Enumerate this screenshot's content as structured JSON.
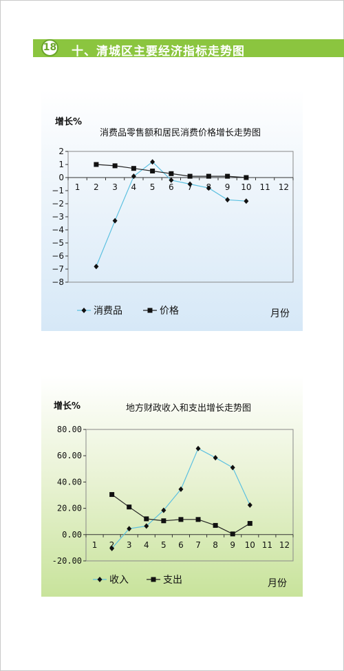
{
  "header": {
    "number": "18",
    "title": "十、清城区主要经济指标走势图"
  },
  "chart_data": [
    {
      "type": "line",
      "title": "消费品零售额和居民消费价格增长走势图",
      "ylabel": "增长%",
      "xlabel": "月份",
      "ylim": [
        -8,
        2
      ],
      "xlim": [
        0,
        12
      ],
      "yticks": [
        "2",
        "1",
        "0",
        "−1",
        "−2",
        "−3",
        "−4",
        "−5",
        "−6",
        "−7",
        "−8"
      ],
      "xticks": [
        "1",
        "2",
        "3",
        "4",
        "5",
        "6",
        "7",
        "8",
        "9",
        "10",
        "11",
        "12"
      ],
      "legend_position": "bottom",
      "series": [
        {
          "name": "消费品",
          "marker": "diamond",
          "color": "#5bc0e0",
          "x": [
            2,
            3,
            4,
            5,
            6,
            7,
            8,
            9,
            10
          ],
          "values": [
            -6.8,
            -3.3,
            0.1,
            1.2,
            -0.2,
            -0.5,
            -0.8,
            -1.7,
            -1.8
          ]
        },
        {
          "name": "价格",
          "marker": "square",
          "color": "#222222",
          "x": [
            2,
            3,
            4,
            5,
            6,
            7,
            8,
            9,
            10
          ],
          "values": [
            1.0,
            0.9,
            0.7,
            0.5,
            0.3,
            0.1,
            0.1,
            0.1,
            0.0
          ]
        }
      ]
    },
    {
      "type": "line",
      "title": "地方财政收入和支出增长走势图",
      "ylabel": "增长%",
      "xlabel": "月份",
      "ylim": [
        -20,
        80
      ],
      "xlim": [
        0,
        12
      ],
      "yticks": [
        "80.00",
        "60.00",
        "40.00",
        "20.00",
        "0.00",
        "-20.00"
      ],
      "xticks": [
        "1",
        "2",
        "3",
        "4",
        "5",
        "6",
        "7",
        "8",
        "9",
        "10",
        "11",
        "12"
      ],
      "legend_position": "bottom",
      "series": [
        {
          "name": "收入",
          "marker": "diamond",
          "color": "#5bc0e0",
          "x": [
            2,
            3,
            4,
            5,
            6,
            7,
            8,
            9,
            10
          ],
          "values": [
            -10.5,
            4.5,
            6.5,
            18.5,
            34.5,
            65.5,
            58.5,
            51,
            22.5
          ]
        },
        {
          "name": "支出",
          "marker": "square",
          "color": "#222222",
          "x": [
            2,
            3,
            4,
            5,
            6,
            7,
            8,
            9,
            10
          ],
          "values": [
            30.5,
            21,
            12,
            10.5,
            11.5,
            11.5,
            7,
            0.5,
            8.5
          ]
        }
      ]
    }
  ]
}
